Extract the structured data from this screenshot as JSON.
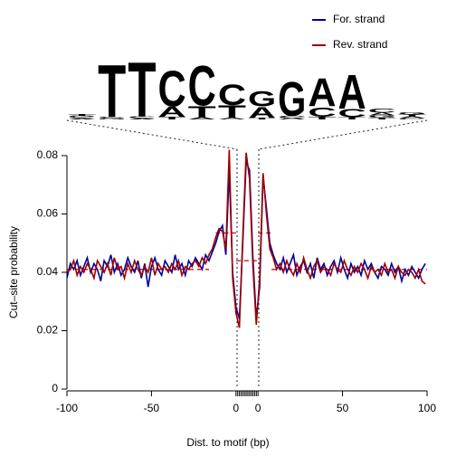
{
  "chart_data": {
    "type": "line",
    "xlabel": "Dist. to motif (bp)",
    "ylabel": "Cut–site probability",
    "x": [
      -100,
      -98,
      -96,
      -94,
      -92,
      -90,
      -88,
      -86,
      -84,
      -82,
      -80,
      -78,
      -76,
      -74,
      -72,
      -70,
      -68,
      -66,
      -64,
      -62,
      -60,
      -58,
      -56,
      -54,
      -52,
      -50,
      -48,
      -46,
      -44,
      -42,
      -40,
      -38,
      -36,
      -34,
      -32,
      -30,
      -28,
      -26,
      -24,
      -22,
      -20,
      -18,
      -16,
      -14,
      -12,
      -10,
      -8,
      -6,
      -4,
      -2,
      0,
      2,
      4,
      6,
      8,
      10,
      12,
      14,
      16,
      18,
      20,
      22,
      24,
      26,
      28,
      30,
      32,
      34,
      36,
      38,
      40,
      42,
      44,
      46,
      48,
      50,
      52,
      54,
      56,
      58,
      60,
      62,
      64,
      66,
      68,
      70,
      72,
      74,
      76,
      78,
      80,
      82,
      84,
      86,
      88,
      90,
      92,
      94,
      96,
      98,
      100,
      102,
      104,
      106,
      108,
      110,
      112
    ],
    "series": [
      {
        "name": "For. strand",
        "color": "#00009c",
        "values": [
          0.038,
          0.043,
          0.041,
          0.044,
          0.039,
          0.042,
          0.045,
          0.04,
          0.043,
          0.041,
          0.037,
          0.044,
          0.042,
          0.046,
          0.04,
          0.043,
          0.039,
          0.041,
          0.045,
          0.042,
          0.04,
          0.044,
          0.038,
          0.043,
          0.035,
          0.042,
          0.045,
          0.041,
          0.039,
          0.044,
          0.042,
          0.04,
          0.046,
          0.041,
          0.043,
          0.039,
          0.044,
          0.042,
          0.045,
          0.043,
          0.041,
          0.046,
          0.044,
          0.047,
          0.05,
          0.054,
          0.056,
          0.046,
          0.075,
          0.04,
          0.028,
          0.024,
          0.05,
          0.078,
          0.075,
          0.045,
          0.024,
          0.035,
          0.073,
          0.062,
          0.05,
          0.046,
          0.043,
          0.041,
          0.045,
          0.04,
          0.043,
          0.046,
          0.039,
          0.042,
          0.044,
          0.04,
          0.043,
          0.038,
          0.045,
          0.041,
          0.043,
          0.039,
          0.042,
          0.044,
          0.04,
          0.045,
          0.041,
          0.038,
          0.043,
          0.04,
          0.042,
          0.039,
          0.044,
          0.041,
          0.043,
          0.04,
          0.038,
          0.042,
          0.041,
          0.039,
          0.043,
          0.04,
          0.042,
          0.037,
          0.041,
          0.039,
          0.042,
          0.04,
          0.038,
          0.041,
          0.043
        ]
      },
      {
        "name": "Rev. strand",
        "color": "#9c0000",
        "values": [
          0.04,
          0.041,
          0.044,
          0.039,
          0.042,
          0.04,
          0.043,
          0.041,
          0.038,
          0.044,
          0.042,
          0.04,
          0.043,
          0.039,
          0.045,
          0.041,
          0.042,
          0.038,
          0.043,
          0.04,
          0.044,
          0.041,
          0.039,
          0.042,
          0.04,
          0.045,
          0.039,
          0.043,
          0.041,
          0.042,
          0.04,
          0.043,
          0.041,
          0.044,
          0.039,
          0.042,
          0.041,
          0.043,
          0.044,
          0.042,
          0.045,
          0.043,
          0.046,
          0.048,
          0.052,
          0.055,
          0.054,
          0.048,
          0.082,
          0.038,
          0.026,
          0.021,
          0.052,
          0.081,
          0.072,
          0.042,
          0.022,
          0.038,
          0.074,
          0.06,
          0.048,
          0.045,
          0.041,
          0.043,
          0.04,
          0.044,
          0.041,
          0.039,
          0.043,
          0.04,
          0.045,
          0.041,
          0.038,
          0.042,
          0.044,
          0.04,
          0.042,
          0.041,
          0.039,
          0.043,
          0.041,
          0.04,
          0.044,
          0.041,
          0.039,
          0.042,
          0.04,
          0.043,
          0.041,
          0.038,
          0.042,
          0.04,
          0.041,
          0.039,
          0.043,
          0.04,
          0.041,
          0.038,
          0.042,
          0.04,
          0.039,
          0.041,
          0.04,
          0.038,
          0.041,
          0.037,
          0.036
        ]
      }
    ],
    "flank_means": {
      "color": "#e02020",
      "segments": [
        {
          "x": [
            -100,
            -16
          ],
          "y": 0.041
        },
        {
          "x": [
            -12,
            0
          ],
          "y": 0.0535
        },
        {
          "x": [
            0,
            13
          ],
          "y": 0.044
        },
        {
          "x": [
            13,
            21
          ],
          "y": 0.0535
        },
        {
          "x": [
            21,
            113
          ],
          "y": 0.041
        }
      ]
    },
    "xlim": [
      -100,
      113
    ],
    "ylim": [
      0,
      0.08
    ],
    "xticks": [
      -100,
      -50,
      0,
      {
        "value": 13,
        "label": "0"
      },
      {
        "value": 63,
        "label": "50"
      },
      {
        "value": 113,
        "label": "100"
      }
    ],
    "motif_ticks": [
      1,
      2,
      3,
      4,
      5,
      6,
      7,
      8,
      9,
      10,
      11,
      12
    ],
    "yticks": [
      0,
      0.02,
      0.04,
      0.06,
      0.08
    ],
    "legend": "top-right"
  },
  "logo": {
    "colors": {
      "A": "#008a00",
      "C": "#1030c0",
      "G": "#ffb000",
      "T": "#d01010"
    },
    "columns": [
      [
        {
          "letter": "A",
          "height": 0.04
        },
        {
          "letter": "C",
          "height": 0.05
        },
        {
          "letter": "G",
          "height": 0.04
        },
        {
          "letter": "T",
          "height": 0.06
        }
      ],
      [
        {
          "letter": "G",
          "height": 0.05
        },
        {
          "letter": "C",
          "height": 0.05
        },
        {
          "letter": "T",
          "height": 1.85
        }
      ],
      [
        {
          "letter": "A",
          "height": 0.04
        },
        {
          "letter": "C",
          "height": 0.06
        },
        {
          "letter": "T",
          "height": 1.95
        }
      ],
      [
        {
          "letter": "T",
          "height": 0.1
        },
        {
          "letter": "A",
          "height": 0.35
        },
        {
          "letter": "C",
          "height": 1.3
        }
      ],
      [
        {
          "letter": "A",
          "height": 0.08
        },
        {
          "letter": "T",
          "height": 0.4
        },
        {
          "letter": "C",
          "height": 1.45
        }
      ],
      [
        {
          "letter": "A",
          "height": 0.05
        },
        {
          "letter": "T",
          "height": 0.45
        },
        {
          "letter": "C",
          "height": 0.75
        }
      ],
      [
        {
          "letter": "T",
          "height": 0.05
        },
        {
          "letter": "A",
          "height": 0.4
        },
        {
          "letter": "G",
          "height": 0.55
        }
      ],
      [
        {
          "letter": "A",
          "height": 0.05
        },
        {
          "letter": "C",
          "height": 0.08
        },
        {
          "letter": "G",
          "height": 1.25
        }
      ],
      [
        {
          "letter": "T",
          "height": 0.1
        },
        {
          "letter": "C",
          "height": 0.35
        },
        {
          "letter": "A",
          "height": 1.0
        }
      ],
      [
        {
          "letter": "T",
          "height": 0.08
        },
        {
          "letter": "C",
          "height": 0.3
        },
        {
          "letter": "A",
          "height": 1.2
        }
      ],
      [
        {
          "letter": "T",
          "height": 0.06
        },
        {
          "letter": "G",
          "height": 0.08
        },
        {
          "letter": "A",
          "height": 0.1
        },
        {
          "letter": "C",
          "height": 0.15
        }
      ],
      [
        {
          "letter": "C",
          "height": 0.05
        },
        {
          "letter": "A",
          "height": 0.06
        },
        {
          "letter": "T",
          "height": 0.06
        },
        {
          "letter": "G",
          "height": 0.08
        }
      ]
    ]
  }
}
